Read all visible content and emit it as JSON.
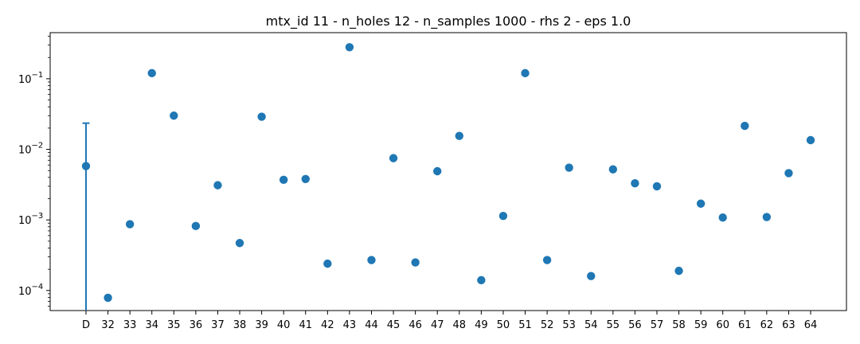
{
  "chart_data": {
    "type": "scatter",
    "title": "mtx_id 11 - n_holes 12 - n_samples 1000 - rhs 2 - eps 1.0",
    "xlabel": "",
    "ylabel": "",
    "yscale": "log",
    "ylim": [
      5.2e-05,
      0.45
    ],
    "yticks": [
      {
        "value": 0.0001,
        "base": "10",
        "exp": "−4"
      },
      {
        "value": 0.001,
        "base": "10",
        "exp": "−3"
      },
      {
        "value": 0.01,
        "base": "10",
        "exp": "−2"
      },
      {
        "value": 0.1,
        "base": "10",
        "exp": "−1"
      }
    ],
    "grid": false,
    "legend": "none",
    "color": "#1f77b4",
    "categories": [
      "D",
      "32",
      "33",
      "34",
      "35",
      "36",
      "37",
      "38",
      "39",
      "40",
      "41",
      "42",
      "43",
      "44",
      "45",
      "46",
      "47",
      "48",
      "49",
      "50",
      "51",
      "52",
      "53",
      "54",
      "55",
      "56",
      "57",
      "58",
      "59",
      "60",
      "61",
      "62",
      "63",
      "64"
    ],
    "values": [
      0.0058,
      7.9e-05,
      0.00087,
      0.12,
      0.03,
      0.00082,
      0.0031,
      0.00047,
      0.029,
      0.0037,
      0.0038,
      0.00024,
      0.28,
      0.00027,
      0.0075,
      0.00025,
      0.0049,
      0.0155,
      0.00014,
      0.00114,
      0.12,
      0.00027,
      0.0055,
      0.00016,
      0.0052,
      0.0033,
      0.003,
      0.00019,
      0.0017,
      0.00108,
      0.0215,
      0.0011,
      0.0046,
      0.0135
    ],
    "error_bars": [
      {
        "category": "D",
        "lower": 5.2e-05,
        "upper": 0.0235
      }
    ]
  }
}
